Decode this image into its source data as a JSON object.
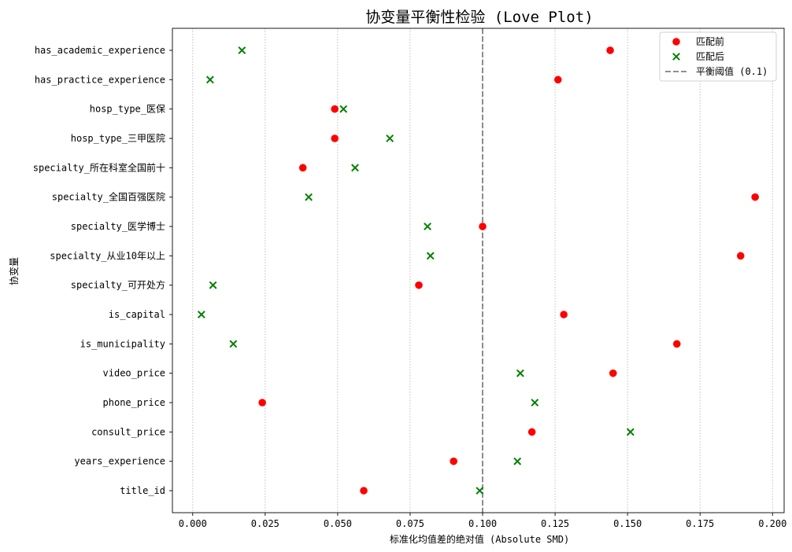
{
  "chart_data": {
    "type": "scatter",
    "title": "协变量平衡性检验 (Love Plot)",
    "xlabel": "标准化均值差的绝对值 (Absolute SMD)",
    "ylabel": "协变量",
    "xlim": [
      -0.007,
      0.204
    ],
    "xticks": [
      0.0,
      0.025,
      0.05,
      0.075,
      0.1,
      0.125,
      0.15,
      0.175,
      0.2
    ],
    "xtick_labels": [
      "0.000",
      "0.025",
      "0.050",
      "0.075",
      "0.100",
      "0.125",
      "0.150",
      "0.175",
      "0.200"
    ],
    "grid": "x-dotted",
    "legend_position": "top-right",
    "categories": [
      "has_academic_experience",
      "has_practice_experience",
      "hosp_type_医保",
      "hosp_type_三甲医院",
      "specialty_所在科室全国前十",
      "specialty_全国百强医院",
      "specialty_医学博士",
      "specialty_从业10年以上",
      "specialty_可开处方",
      "is_capital",
      "is_municipality",
      "video_price",
      "phone_price",
      "consult_price",
      "years_experience",
      "title_id"
    ],
    "series": [
      {
        "name": "匹配前",
        "marker": "circle",
        "color": "#ff0000",
        "values": [
          0.144,
          0.126,
          0.049,
          0.049,
          0.038,
          0.194,
          0.1,
          0.189,
          0.078,
          0.128,
          0.167,
          0.145,
          0.024,
          0.117,
          0.09,
          0.059
        ]
      },
      {
        "name": "匹配后",
        "marker": "x",
        "color": "#008000",
        "values": [
          0.017,
          0.006,
          0.052,
          0.068,
          0.056,
          0.04,
          0.081,
          0.082,
          0.007,
          0.003,
          0.014,
          0.113,
          0.118,
          0.151,
          0.112,
          0.099
        ]
      }
    ],
    "threshold": {
      "value": 0.1,
      "label": "平衡阈值 (0.1)",
      "color": "#808080",
      "style": "dashed"
    }
  }
}
